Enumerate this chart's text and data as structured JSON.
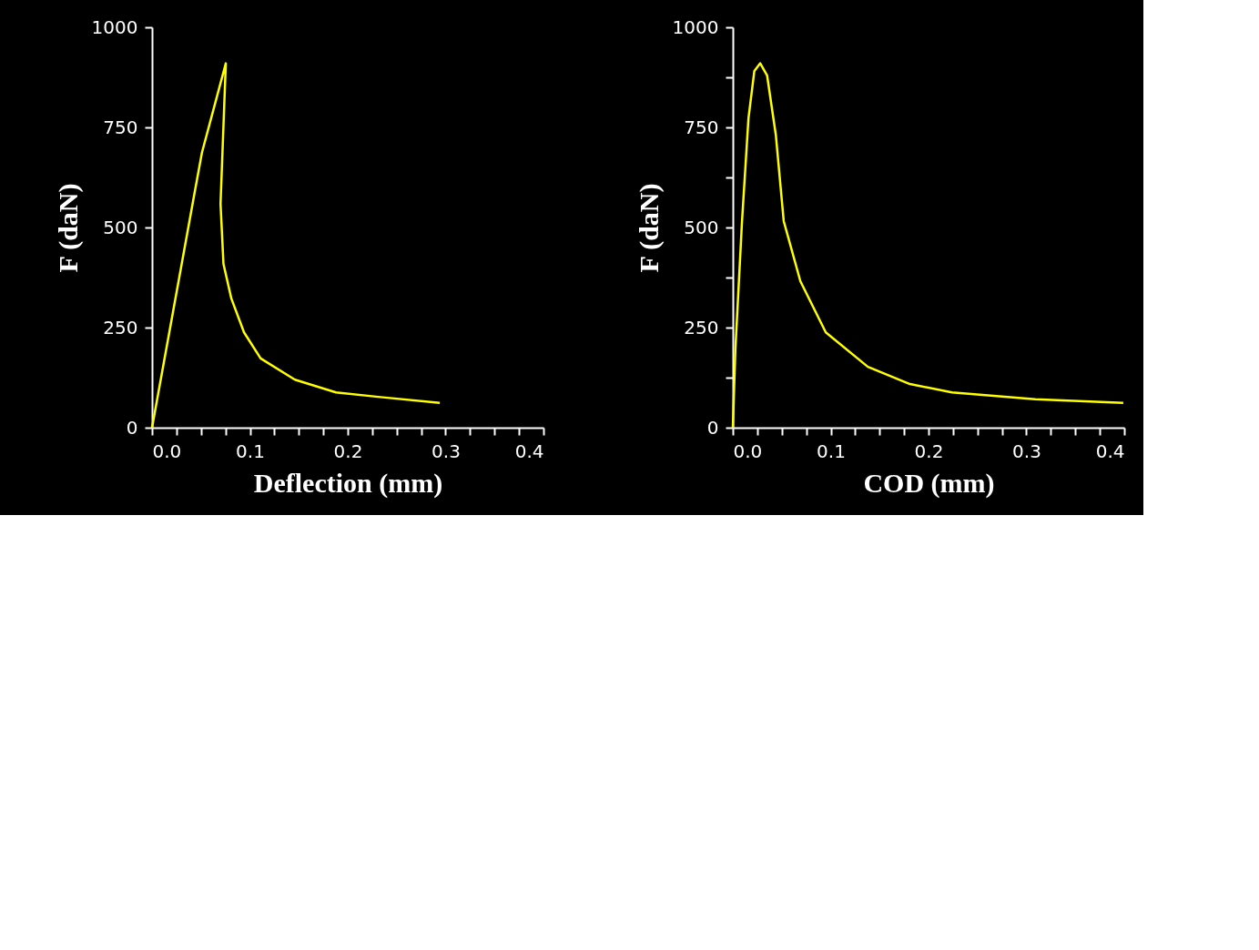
{
  "chart_data": [
    {
      "type": "line",
      "xlabel": "Deflection (mm)",
      "ylabel": "F (daN)",
      "grid": false,
      "xlim": [
        0,
        0.4
      ],
      "ylim": [
        0,
        1000
      ],
      "xticks": [
        {
          "value": 0,
          "label": "0.0"
        },
        {
          "value": 0.025,
          "label": null
        },
        {
          "value": 0.05,
          "label": null
        },
        {
          "value": 0.075,
          "label": null
        },
        {
          "value": 0.1,
          "label": "0.1"
        },
        {
          "value": 0.125,
          "label": null
        },
        {
          "value": 0.15,
          "label": null
        },
        {
          "value": 0.175,
          "label": null
        },
        {
          "value": 0.2,
          "label": "0.2"
        },
        {
          "value": 0.225,
          "label": null
        },
        {
          "value": 0.25,
          "label": null
        },
        {
          "value": 0.275,
          "label": null
        },
        {
          "value": 0.3,
          "label": "0.3"
        },
        {
          "value": 0.325,
          "label": null
        },
        {
          "value": 0.35,
          "label": null
        },
        {
          "value": 0.375,
          "label": null
        },
        {
          "value": 0.4,
          "label": "0.4"
        }
      ],
      "yticks": [
        0,
        250,
        500,
        750,
        1000
      ],
      "series": [
        {
          "color": "#ffff00",
          "x": [
            0,
            0.043,
            0.051,
            0.0754,
            0.07,
            0.073,
            0.081,
            0.094,
            0.111,
            0.146,
            0.188,
            0.231,
            0.294
          ],
          "values": [
            0,
            580,
            687,
            910,
            559,
            409,
            323,
            238,
            173,
            120,
            88,
            77,
            62
          ]
        }
      ]
    },
    {
      "type": "line",
      "xlabel": "COD (mm)",
      "ylabel": "F (daN)",
      "grid": false,
      "xlim": [
        0,
        0.4
      ],
      "ylim": [
        0,
        1000
      ],
      "xticks": [
        {
          "value": 0,
          "label": "0.0"
        },
        {
          "value": 0.025,
          "label": null
        },
        {
          "value": 0.05,
          "label": null
        },
        {
          "value": 0.075,
          "label": null
        },
        {
          "value": 0.1,
          "label": "0.1"
        },
        {
          "value": 0.125,
          "label": null
        },
        {
          "value": 0.15,
          "label": null
        },
        {
          "value": 0.175,
          "label": null
        },
        {
          "value": 0.2,
          "label": "0.2"
        },
        {
          "value": 0.225,
          "label": null
        },
        {
          "value": 0.25,
          "label": null
        },
        {
          "value": 0.275,
          "label": null
        },
        {
          "value": 0.3,
          "label": "0.3"
        },
        {
          "value": 0.325,
          "label": null
        },
        {
          "value": 0.35,
          "label": null
        },
        {
          "value": 0.375,
          "label": null
        },
        {
          "value": 0.4,
          "label": "0.4"
        }
      ],
      "yticks": [
        0,
        {
          "value": 125,
          "label": null
        },
        250,
        {
          "value": 375,
          "label": null
        },
        500,
        {
          "value": 625,
          "label": null
        },
        750,
        {
          "value": 875,
          "label": null
        },
        1000
      ],
      "series": [
        {
          "color": "#ffff00",
          "x": [
            0,
            0.0026,
            0.0094,
            0.016,
            0.022,
            0.028,
            0.035,
            0.044,
            0.052,
            0.069,
            0.095,
            0.138,
            0.181,
            0.224,
            0.309,
            0.399
          ],
          "values": [
            0,
            195,
            516,
            773,
            891,
            910,
            880,
            730,
            516,
            366,
            238,
            152,
            109,
            88,
            71,
            62
          ]
        }
      ]
    }
  ]
}
